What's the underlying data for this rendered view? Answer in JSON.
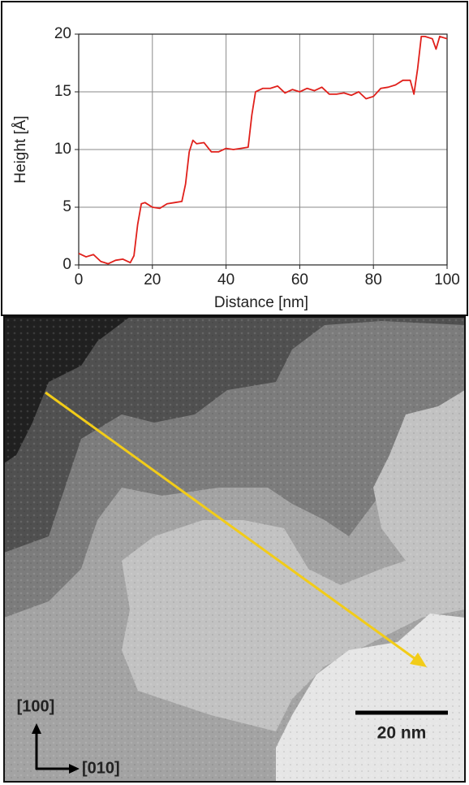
{
  "chart_data": {
    "type": "line",
    "x_label": "Distance [nm]",
    "y_label": "Height [Å]",
    "x": [
      0,
      2,
      4,
      6,
      8,
      10,
      12,
      14,
      15,
      16,
      17,
      18,
      20,
      22,
      24,
      26,
      28,
      29,
      30,
      31,
      32,
      34,
      36,
      38,
      40,
      42,
      44,
      46,
      47,
      48,
      50,
      52,
      54,
      56,
      58,
      60,
      62,
      64,
      66,
      68,
      70,
      72,
      74,
      76,
      78,
      80,
      82,
      84,
      86,
      88,
      90,
      91,
      92,
      93,
      94,
      96,
      97,
      98,
      100
    ],
    "values": [
      1.0,
      0.7,
      0.9,
      0.3,
      0.1,
      0.4,
      0.5,
      0.2,
      0.8,
      3.5,
      5.3,
      5.4,
      5.0,
      4.9,
      5.3,
      5.4,
      5.5,
      7.0,
      9.8,
      10.8,
      10.5,
      10.6,
      9.8,
      9.8,
      10.1,
      10.0,
      10.1,
      10.2,
      13.0,
      15.0,
      15.3,
      15.3,
      15.5,
      14.9,
      15.2,
      15.0,
      15.3,
      15.1,
      15.4,
      14.8,
      14.8,
      14.9,
      14.7,
      15.0,
      14.4,
      14.6,
      15.3,
      15.4,
      15.6,
      16.0,
      16.0,
      14.8,
      17.0,
      19.8,
      19.8,
      19.6,
      18.7,
      19.8,
      19.6
    ],
    "color": "#e0201b",
    "xlim": [
      0,
      100
    ],
    "xticks": [
      0,
      20,
      40,
      60,
      80,
      100
    ],
    "ylim": [
      0,
      20
    ],
    "yticks": [
      0,
      5,
      10,
      15,
      20
    ],
    "grid": true
  },
  "image": {
    "direction_labels": [
      "[100]",
      "[010]"
    ],
    "scale_bar": "20 nm"
  }
}
